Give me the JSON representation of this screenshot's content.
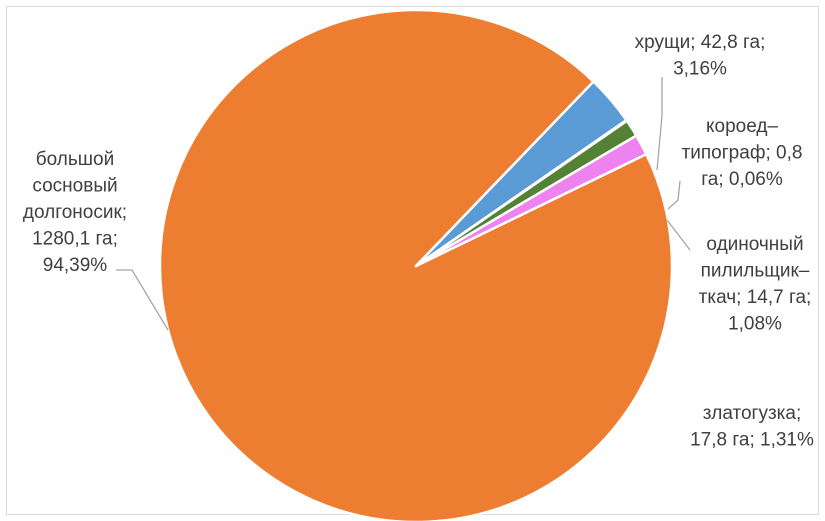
{
  "chart_data": {
    "type": "pie",
    "slices": [
      {
        "name": "большой сосновый долгоносик",
        "value": 1280.1,
        "unit": "га",
        "percent": 94.39,
        "color": "#ED7D31",
        "label_lines": [
          "большой",
          "сосновый",
          "долгоносик;",
          "1280,1 га;",
          "94,39%"
        ]
      },
      {
        "name": "хрущи",
        "value": 42.8,
        "unit": "га",
        "percent": 3.16,
        "color": "#5B9BD5",
        "label_lines": [
          "хрущи; 42,8 га;",
          "3,16%"
        ]
      },
      {
        "name": "короед–типограф",
        "value": 0.8,
        "unit": "га",
        "percent": 0.06,
        "color": "#70AD47",
        "label_lines": [
          "короед–",
          "типограф; 0,8",
          "га; 0,06%"
        ]
      },
      {
        "name": "одиночный пилильщик–ткач",
        "value": 14.7,
        "unit": "га",
        "percent": 1.08,
        "color": "#548235",
        "label_lines": [
          "одиночный",
          "пилильщик–",
          "ткач; 14,7 га;",
          "1,08%"
        ]
      },
      {
        "name": "златогузка",
        "value": 17.8,
        "unit": "га",
        "percent": 1.31,
        "color": "#EE82EE",
        "label_lines": [
          "златогузка;",
          "17,8 га; 1,31%"
        ]
      }
    ]
  }
}
